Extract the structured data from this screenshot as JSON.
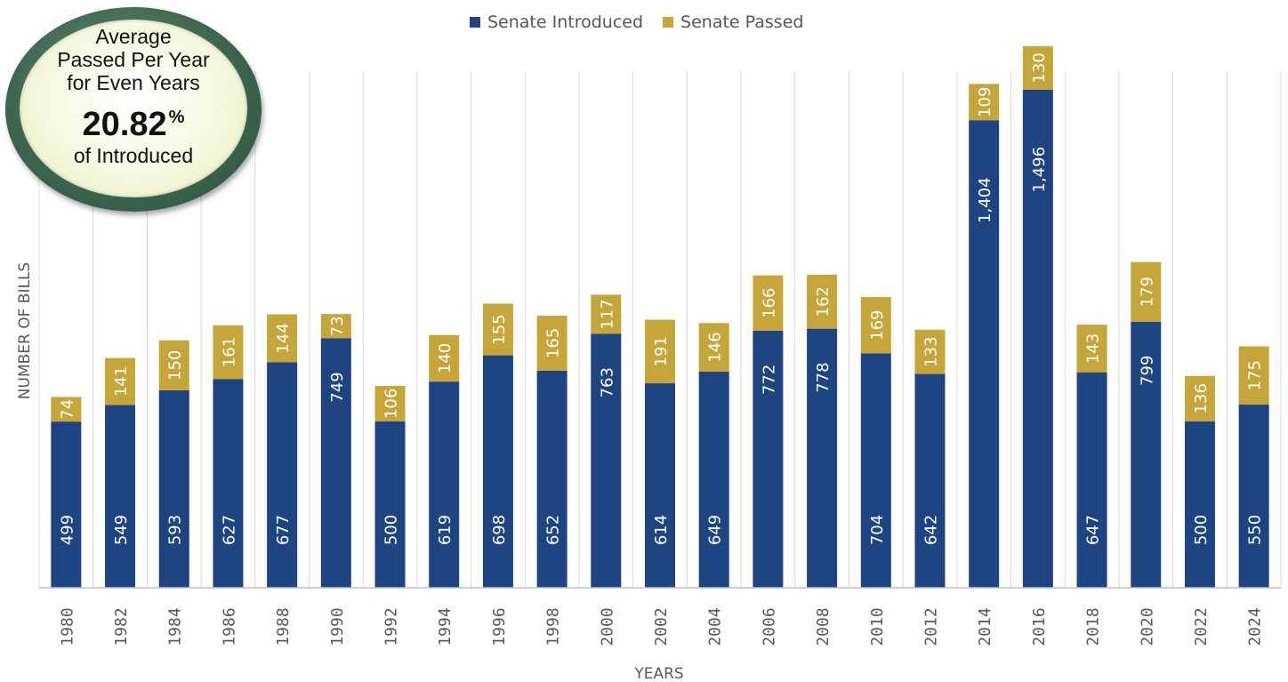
{
  "legend": {
    "introduced_label": "Senate Introduced",
    "passed_label": "Senate Passed"
  },
  "badge": {
    "line1": "Average",
    "line2": "Passed Per Year",
    "line3": "for Even Years",
    "value": "20.82",
    "unit": "%",
    "line4": "of Introduced"
  },
  "colors": {
    "introduced": "#1f4482",
    "passed": "#c6a63b",
    "grid": "#d9d9d9",
    "axis_text": "#595959"
  },
  "chart_data": {
    "type": "bar",
    "stacked": true,
    "categories": [
      "1980",
      "1982",
      "1984",
      "1986",
      "1988",
      "1990",
      "1992",
      "1994",
      "1996",
      "1998",
      "2000",
      "2002",
      "2004",
      "2006",
      "2008",
      "2010",
      "2012",
      "2014",
      "2016",
      "2018",
      "2020",
      "2022",
      "2024"
    ],
    "series": [
      {
        "name": "Senate Introduced",
        "values": [
          499,
          549,
          593,
          627,
          677,
          749,
          500,
          619,
          698,
          652,
          763,
          614,
          649,
          772,
          778,
          704,
          642,
          1404,
          1496,
          647,
          799,
          500,
          550
        ],
        "labels": [
          "499",
          "549",
          "593",
          "627",
          "677",
          "749",
          "500",
          "619",
          "698",
          "652",
          "763",
          "614",
          "649",
          "772",
          "778",
          "704",
          "642",
          "1,404",
          "1,496",
          "647",
          "799",
          "500",
          "550"
        ]
      },
      {
        "name": "Senate Passed",
        "values": [
          74,
          141,
          150,
          161,
          144,
          73,
          106,
          140,
          155,
          165,
          117,
          191,
          146,
          166,
          162,
          169,
          133,
          109,
          130,
          143,
          179,
          136,
          175
        ],
        "labels": [
          "74",
          "141",
          "150",
          "161",
          "144",
          "73",
          "106",
          "140",
          "155",
          "165",
          "117",
          "191",
          "146",
          "166",
          "162",
          "169",
          "133",
          "109",
          "130",
          "143",
          "179",
          "136",
          "175"
        ]
      }
    ],
    "xlabel": "YEARS",
    "ylabel": "NUMBER OF BILLS",
    "ylim": [
      0,
      1700
    ],
    "legend_position": "top",
    "grid": "vertical"
  }
}
